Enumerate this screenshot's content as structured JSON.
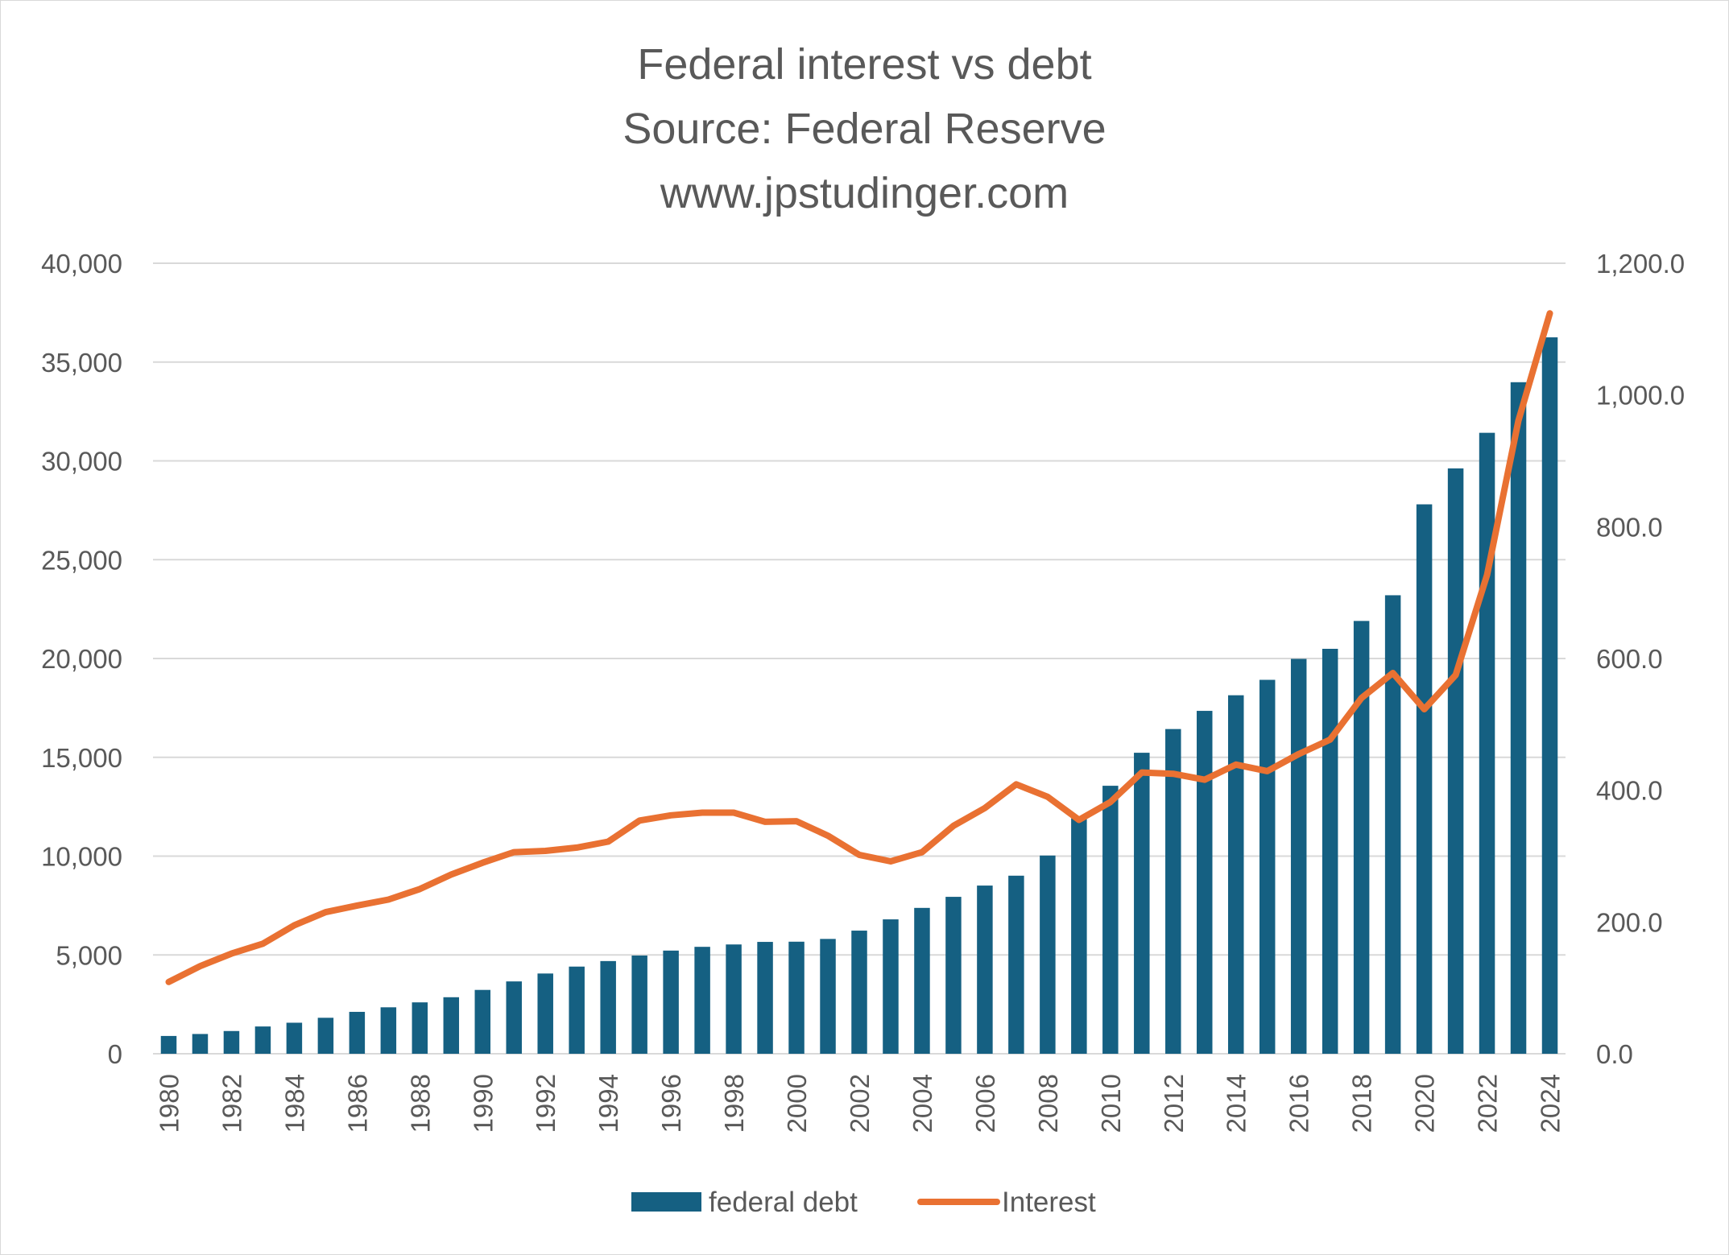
{
  "chart_data": {
    "type": "bar",
    "title": "Federal interest vs debt",
    "subtitle_lines": [
      "Source: Federal Reserve",
      "www.jpstudinger.com"
    ],
    "xlabel": "",
    "ylabel": "",
    "grid": true,
    "legend_placement": "bottom",
    "x": [
      1980,
      1981,
      1982,
      1983,
      1984,
      1985,
      1986,
      1987,
      1988,
      1989,
      1990,
      1991,
      1992,
      1993,
      1994,
      1995,
      1996,
      1997,
      1998,
      1999,
      2000,
      2001,
      2002,
      2003,
      2004,
      2005,
      2006,
      2007,
      2008,
      2009,
      2010,
      2011,
      2012,
      2013,
      2014,
      2015,
      2016,
      2017,
      2018,
      2019,
      2020,
      2021,
      2022,
      2023,
      2024
    ],
    "x_tick_labels": [
      "1980",
      "1982",
      "1984",
      "1986",
      "1988",
      "1990",
      "1992",
      "1994",
      "1996",
      "1998",
      "2000",
      "2002",
      "2004",
      "2006",
      "2008",
      "2010",
      "2012",
      "2014",
      "2016",
      "2018",
      "2020",
      "2022",
      "2024"
    ],
    "y_left": {
      "range": [
        0,
        40000
      ],
      "ticks": [
        "0",
        "5,000",
        "10,000",
        "15,000",
        "20,000",
        "25,000",
        "30,000",
        "35,000",
        "40,000"
      ]
    },
    "y_right": {
      "range": [
        0,
        1200
      ],
      "ticks": [
        "0.0",
        "200.0",
        "400.0",
        "600.0",
        "800.0",
        "1,000.0",
        "1,200.0"
      ]
    },
    "series": [
      {
        "name": "federal debt",
        "type": "bar",
        "axis": "left",
        "color": "#156082",
        "values": [
          900,
          1000,
          1150,
          1380,
          1570,
          1820,
          2120,
          2350,
          2600,
          2860,
          3230,
          3660,
          4060,
          4410,
          4690,
          4970,
          5220,
          5410,
          5530,
          5660,
          5670,
          5810,
          6230,
          6800,
          7380,
          7940,
          8510,
          9010,
          10030,
          11910,
          13560,
          15230,
          16430,
          17350,
          18140,
          18920,
          19980,
          20490,
          21900,
          23200,
          27800,
          29620,
          31420,
          33980,
          36250
        ]
      },
      {
        "name": "Interest",
        "type": "line",
        "axis": "right",
        "color": "#e97132",
        "values": [
          109,
          133,
          152,
          167,
          195,
          215,
          225,
          234,
          250,
          272,
          290,
          306,
          308,
          313,
          322,
          354,
          362,
          366,
          366,
          352,
          353,
          331,
          302,
          292,
          306,
          346,
          373,
          409,
          390,
          355,
          382,
          427,
          425,
          416,
          439,
          429,
          455,
          477,
          540,
          578,
          523,
          575,
          727,
          961,
          1124
        ]
      }
    ]
  }
}
